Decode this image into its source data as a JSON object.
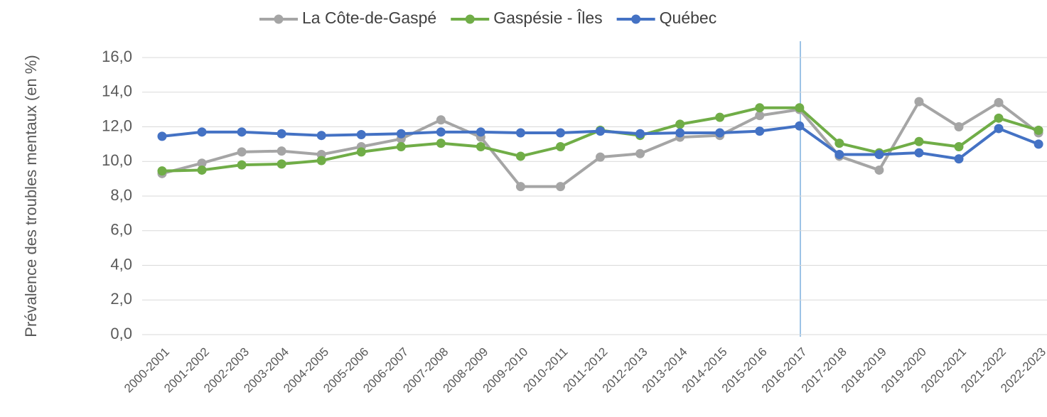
{
  "chart_data": {
    "type": "line",
    "y_label": "Prévalence des troubles mentaux (en %)",
    "categories": [
      "2000-2001",
      "2001-2002",
      "2002-2003",
      "2003-2004",
      "2004-2005",
      "2005-2006",
      "2006-2007",
      "2007-2008",
      "2008-2009",
      "2009-2010",
      "2010-2011",
      "2011-2012",
      "2012-2013",
      "2013-2014",
      "2014-2015",
      "2015-2016",
      "2016-2017",
      "2017-2018",
      "2018-2019",
      "2019-2020",
      "2020-2021",
      "2021-2022",
      "2022-2023"
    ],
    "series": [
      {
        "name": "La Côte-de-Gaspé",
        "color": "#a5a5a5",
        "values": [
          9.3,
          9.9,
          10.55,
          10.6,
          10.4,
          10.85,
          11.3,
          12.4,
          11.4,
          8.55,
          8.55,
          10.25,
          10.45,
          11.4,
          11.5,
          12.65,
          13.0,
          10.3,
          9.5,
          13.45,
          12.0,
          13.4,
          11.65
        ]
      },
      {
        "name": "Gaspésie - Îles",
        "color": "#70ad47",
        "values": [
          9.45,
          9.5,
          9.8,
          9.85,
          10.05,
          10.55,
          10.85,
          11.05,
          10.85,
          10.3,
          10.85,
          11.8,
          11.5,
          12.15,
          12.55,
          13.1,
          13.1,
          11.05,
          10.5,
          11.15,
          10.85,
          12.5,
          11.8
        ]
      },
      {
        "name": "Québec",
        "color": "#4472c4",
        "values": [
          11.45,
          11.7,
          11.7,
          11.6,
          11.5,
          11.55,
          11.6,
          11.7,
          11.7,
          11.65,
          11.65,
          11.75,
          11.6,
          11.65,
          11.65,
          11.75,
          12.05,
          10.4,
          10.4,
          10.5,
          10.15,
          11.9,
          11.0
        ]
      }
    ],
    "ylim": [
      0,
      16
    ],
    "yticks": [
      {
        "value": 0,
        "label": "0,0"
      },
      {
        "value": 2,
        "label": "2,0"
      },
      {
        "value": 4,
        "label": "4,0"
      },
      {
        "value": 6,
        "label": "6,0"
      },
      {
        "value": 8,
        "label": "8,0"
      },
      {
        "value": 10,
        "label": "10,0"
      },
      {
        "value": 12,
        "label": "12,0"
      },
      {
        "value": 14,
        "label": "14,0"
      },
      {
        "value": 16,
        "label": "16,0"
      }
    ],
    "grid": true,
    "legend": "top"
  }
}
